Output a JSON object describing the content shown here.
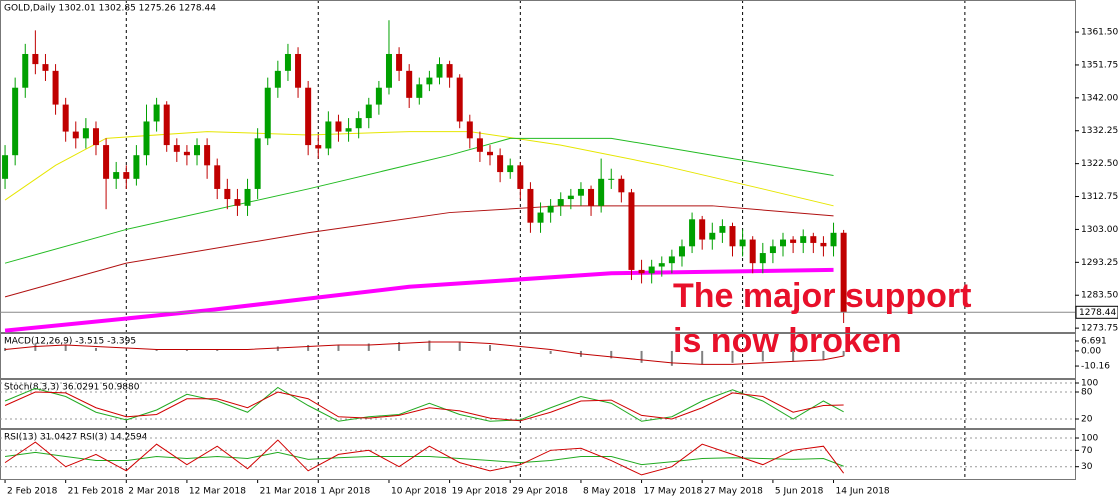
{
  "chart_data": [
    {
      "type": "candlestick",
      "title": "GOLD,Daily  1302.01 1302.85 1275.26 1278.44",
      "up_color": "#00a000",
      "down_color": "#c00000",
      "open": [
        1318,
        1325,
        1345,
        1355,
        1352,
        1350,
        1340,
        1332,
        1330,
        1333,
        1328,
        1318,
        1320,
        1318,
        1325,
        1335,
        1340,
        1328,
        1326,
        1325,
        1328,
        1322,
        1315,
        1312,
        1310,
        1315,
        1330,
        1345,
        1350,
        1355,
        1345,
        1328,
        1327,
        1335,
        1332,
        1333,
        1336,
        1340,
        1345,
        1355,
        1350,
        1342,
        1346,
        1348,
        1352,
        1348,
        1335,
        1330,
        1326,
        1325,
        1320,
        1322,
        1315,
        1305,
        1308,
        1310,
        1312,
        1313,
        1315,
        1310,
        1318,
        1318,
        1314,
        1291,
        1290,
        1292,
        1293,
        1295,
        1298,
        1306,
        1300,
        1302,
        1304,
        1298,
        1300,
        1293,
        1296,
        1298,
        1300,
        1299,
        1301,
        1299,
        1298,
        1302.01
      ],
      "high": [
        1328,
        1348,
        1358,
        1362,
        1355,
        1352,
        1342,
        1335,
        1336,
        1335,
        1330,
        1323,
        1322,
        1328,
        1340,
        1342,
        1341,
        1330,
        1328,
        1330,
        1330,
        1324,
        1318,
        1315,
        1318,
        1333,
        1348,
        1353,
        1358,
        1357,
        1347,
        1331,
        1338,
        1337,
        1336,
        1338,
        1342,
        1347,
        1365,
        1357,
        1352,
        1348,
        1350,
        1354,
        1353,
        1349,
        1337,
        1332,
        1328,
        1327,
        1324,
        1323,
        1317,
        1311,
        1312,
        1314,
        1315,
        1317,
        1316,
        1324,
        1321,
        1319,
        1315,
        1294,
        1294,
        1295,
        1297,
        1300,
        1308,
        1307,
        1305,
        1306,
        1305,
        1303,
        1301,
        1299,
        1300,
        1302,
        1301,
        1303,
        1302,
        1301,
        1305,
        1302.85
      ],
      "low": [
        1315,
        1322,
        1342,
        1349,
        1347,
        1337,
        1329,
        1327,
        1327,
        1325,
        1309,
        1315,
        1315,
        1316,
        1322,
        1332,
        1326,
        1323,
        1322,
        1322,
        1318,
        1312,
        1309,
        1307,
        1307,
        1312,
        1328,
        1342,
        1347,
        1342,
        1325,
        1324,
        1325,
        1329,
        1329,
        1330,
        1333,
        1337,
        1343,
        1347,
        1339,
        1340,
        1344,
        1346,
        1345,
        1333,
        1327,
        1323,
        1322,
        1317,
        1318,
        1312,
        1302,
        1302,
        1305,
        1307,
        1309,
        1310,
        1307,
        1308,
        1315,
        1311,
        1288,
        1287,
        1287,
        1289,
        1290,
        1292,
        1296,
        1297,
        1297,
        1299,
        1295,
        1295,
        1290,
        1290,
        1293,
        1295,
        1296,
        1296,
        1296,
        1295,
        1295,
        1275.26
      ],
      "close": [
        1325,
        1345,
        1355,
        1352,
        1350,
        1340,
        1332,
        1330,
        1333,
        1328,
        1318,
        1320,
        1318,
        1325,
        1335,
        1340,
        1328,
        1326,
        1325,
        1328,
        1322,
        1315,
        1312,
        1310,
        1315,
        1330,
        1345,
        1350,
        1355,
        1345,
        1328,
        1327,
        1335,
        1332,
        1333,
        1336,
        1340,
        1345,
        1355,
        1350,
        1342,
        1346,
        1348,
        1352,
        1348,
        1335,
        1330,
        1326,
        1325,
        1320,
        1322,
        1315,
        1305,
        1308,
        1310,
        1312,
        1313,
        1315,
        1310,
        1318,
        1318,
        1314,
        1291,
        1290,
        1292,
        1293,
        1295,
        1298,
        1306,
        1300,
        1302,
        1304,
        1298,
        1300,
        1293,
        1296,
        1298,
        1300,
        1299,
        1301,
        1299,
        1298,
        1302,
        1278.44
      ],
      "lines": [
        {
          "color": "#e6e600",
          "width": 1,
          "x": [
            0,
            5,
            10,
            20,
            30,
            40,
            46,
            55,
            65,
            75,
            82
          ],
          "values": [
            1311.7,
            1322,
            1330,
            1332,
            1331,
            1332,
            1332,
            1328,
            1322,
            1315,
            1310
          ]
        },
        {
          "color": "#22bb22",
          "width": 1,
          "x": [
            0,
            12,
            30,
            44,
            50,
            60,
            70,
            82
          ],
          "values": [
            1293,
            1303,
            1315,
            1325,
            1330,
            1330,
            1325,
            1319
          ]
        },
        {
          "color": "#b01010",
          "width": 1,
          "x": [
            0,
            12,
            30,
            44,
            55,
            70,
            82
          ],
          "values": [
            1283,
            1293,
            1302,
            1308,
            1310,
            1310,
            1307
          ]
        },
        {
          "color": "#ff00ff",
          "width": 4,
          "x": [
            0,
            20,
            40,
            60,
            82
          ],
          "values": [
            1273,
            1279,
            1286,
            1290,
            1291
          ]
        }
      ],
      "current_price": 1278.44,
      "annotation": [
        "The major support",
        "is now broken"
      ],
      "xlim": [
        -0.5,
        105.9
      ],
      "ylim": [
        1272.6,
        1371.0
      ],
      "yticks": [
        {
          "value": 1361.5,
          "label": "1361.50"
        },
        1351.75,
        {
          "value": 1342,
          "label": "1342.00"
        },
        1332.25,
        {
          "value": 1322.5,
          "label": "1322.50"
        },
        1312.75,
        {
          "value": 1303,
          "label": "1303.00"
        },
        1293.25,
        {
          "value": 1283.5,
          "label": "1283.50"
        },
        1273.75
      ],
      "xticks": [
        {
          "value": 0,
          "label": "2 Feb 2018"
        },
        {
          "value": 6,
          "label": "21 Feb 2018"
        },
        {
          "value": 12,
          "label": "2 Mar 2018"
        },
        {
          "value": 18,
          "label": "12 Mar 2018"
        },
        {
          "value": 25,
          "label": "21 Mar 2018"
        },
        {
          "value": 31,
          "label": "1 Apr 2018"
        },
        {
          "value": 38,
          "label": "10 Apr 2018"
        },
        {
          "value": 44,
          "label": "19 Apr 2018"
        },
        {
          "value": 50,
          "label": "29 Apr 2018"
        },
        {
          "value": 57,
          "label": "8 May 2018"
        },
        {
          "value": 63,
          "label": "17 May 2018"
        },
        {
          "value": 69,
          "label": "27 May 2018"
        },
        {
          "value": 76,
          "label": "5 Jun 2018"
        },
        {
          "value": 82,
          "label": "14 Jun 2018"
        }
      ],
      "separators": [
        12,
        31,
        51,
        73,
        95
      ]
    },
    {
      "type": "macd",
      "title": "MACD(12,26,9) -3.515 -3.395",
      "color": "#808080",
      "signal_color": "#c00000",
      "x": [
        0,
        3,
        6,
        9,
        12,
        15,
        18,
        21,
        24,
        27,
        30,
        33,
        36,
        39,
        42,
        45,
        48,
        51,
        54,
        57,
        60,
        63,
        66,
        69,
        72,
        75,
        78,
        81,
        83
      ],
      "values": [
        2,
        5,
        4,
        2,
        0,
        1,
        1,
        1,
        0,
        3,
        4,
        4,
        5,
        6,
        7,
        6,
        4,
        1,
        -2,
        -4,
        -5,
        -8,
        -10,
        -9,
        -8,
        -7,
        -7,
        -6,
        -3.515
      ],
      "signal": [
        1,
        3,
        4,
        3,
        2,
        1,
        1,
        1,
        1,
        2,
        3,
        4,
        4,
        5,
        6,
        6,
        5,
        3,
        1,
        -2,
        -4,
        -6,
        -8,
        -9,
        -9,
        -8,
        -7,
        -6,
        -3.395
      ],
      "ylim": [
        -18.2,
        12.06
      ],
      "yticks": [
        6.691,
        {
          "value": 0,
          "label": "0.00"
        },
        -10.16
      ]
    },
    {
      "type": "line",
      "title": "Stoch(8,3,3) 36.0291 50.9880",
      "x": [
        0,
        3,
        6,
        9,
        12,
        15,
        18,
        21,
        24,
        27,
        30,
        33,
        36,
        39,
        42,
        45,
        48,
        51,
        54,
        57,
        60,
        63,
        66,
        69,
        72,
        75,
        78,
        81,
        83
      ],
      "series": [
        {
          "color": "#22aa22",
          "values": [
            60,
            88,
            70,
            35,
            18,
            40,
            75,
            60,
            35,
            90,
            50,
            15,
            25,
            30,
            55,
            30,
            15,
            18,
            45,
            70,
            55,
            15,
            25,
            60,
            85,
            60,
            20,
            60,
            36.0291
          ]
        },
        {
          "color": "#d00000",
          "values": [
            50,
            80,
            78,
            45,
            25,
            30,
            65,
            65,
            45,
            80,
            65,
            25,
            22,
            28,
            45,
            38,
            22,
            16,
            35,
            60,
            62,
            28,
            20,
            45,
            78,
            70,
            35,
            50,
            50.988
          ]
        }
      ],
      "ylim": [
        0,
        108.9
      ],
      "yticks": [
        100,
        80,
        20
      ]
    },
    {
      "type": "line",
      "title": "RSI(13) 31.0427  RSI(3) 14.2594",
      "x": [
        0,
        3,
        6,
        9,
        12,
        15,
        18,
        21,
        24,
        27,
        30,
        33,
        36,
        39,
        42,
        45,
        48,
        51,
        54,
        57,
        60,
        63,
        66,
        69,
        72,
        75,
        78,
        81,
        83
      ],
      "series": [
        {
          "color": "#22aa22",
          "values": [
            55,
            65,
            55,
            45,
            45,
            55,
            50,
            55,
            50,
            65,
            48,
            52,
            55,
            55,
            55,
            50,
            45,
            40,
            45,
            55,
            55,
            35,
            42,
            50,
            52,
            50,
            48,
            50,
            31.0427
          ]
        },
        {
          "color": "#d00000",
          "values": [
            40,
            90,
            30,
            60,
            20,
            85,
            35,
            80,
            25,
            95,
            20,
            60,
            70,
            30,
            80,
            40,
            20,
            35,
            70,
            75,
            45,
            10,
            30,
            85,
            60,
            35,
            70,
            80,
            14.2594
          ]
        }
      ],
      "ylim": [
        0,
        122
      ],
      "yticks": [
        100,
        70,
        30
      ]
    }
  ]
}
